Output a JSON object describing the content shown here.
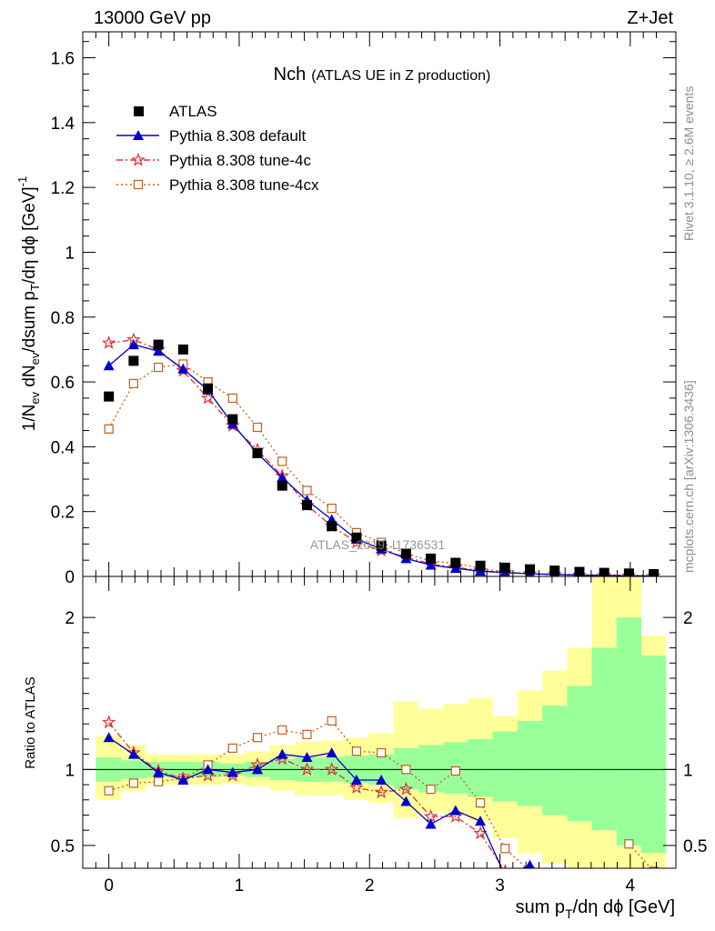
{
  "header": {
    "left": "13000 GeV pp",
    "right": "Z+Jet"
  },
  "side_labels": {
    "rivet": "Rivet 3.1.10, ≥ 2.6M events",
    "mcplots": "mcplots.cern.ch [arXiv:1306.3436]"
  },
  "watermark": "ATLAS_2019_I1736531",
  "chart_data": [
    {
      "panel": "main",
      "type": "line",
      "title_main": "Nch",
      "title_sub": "(ATLAS UE in Z production)",
      "xlabel": "sum p_T/dη dϕ [GeV]",
      "ylabel": "1/N_ev dN_ev/dsum p_T/dη dϕ [GeV]^-1",
      "xlim": [
        -0.2,
        4.35
      ],
      "ylim": [
        0,
        1.68
      ],
      "y_ticks": [
        "0",
        "0.2",
        "0.4",
        "0.6",
        "0.8",
        "1",
        "1.2",
        "1.4",
        "1.6"
      ],
      "legend_position": "top-left",
      "x": [
        0.0,
        0.19,
        0.38,
        0.57,
        0.76,
        0.95,
        1.14,
        1.33,
        1.52,
        1.71,
        1.9,
        2.09,
        2.28,
        2.47,
        2.66,
        2.85,
        3.04,
        3.23,
        3.42,
        3.61,
        3.8,
        3.99,
        4.18
      ],
      "series": [
        {
          "name": "ATLAS",
          "style": "data",
          "color": "#000000",
          "values": [
            0.555,
            0.665,
            0.715,
            0.7,
            0.58,
            0.485,
            0.38,
            0.28,
            0.22,
            0.155,
            0.12,
            0.095,
            0.07,
            0.055,
            0.042,
            0.033,
            0.027,
            0.022,
            0.018,
            0.014,
            0.011,
            0.009,
            0.007
          ]
        },
        {
          "name": "Pythia 8.308 default",
          "style": "solid-triangle",
          "color": "#0000cc",
          "values": [
            0.65,
            0.715,
            0.695,
            0.64,
            0.575,
            0.47,
            0.38,
            0.305,
            0.235,
            0.175,
            0.115,
            0.085,
            0.055,
            0.035,
            0.025,
            0.016,
            0.012,
            0.008,
            0.006,
            0.004,
            0.003,
            0.002,
            0.001
          ]
        },
        {
          "name": "Pythia 8.308 tune-4c",
          "style": "dashdot-star",
          "color": "#dd3333",
          "values": [
            0.72,
            0.73,
            0.7,
            0.635,
            0.55,
            0.465,
            0.39,
            0.31,
            0.22,
            0.155,
            0.105,
            0.08,
            0.06,
            0.038,
            0.028,
            0.018,
            0.012,
            0.008,
            0.006,
            0.004,
            0.003,
            0.002,
            0.001
          ]
        },
        {
          "name": "Pythia 8.308 tune-4cx",
          "style": "dotted-square",
          "color": "#c06020",
          "values": [
            0.455,
            0.595,
            0.645,
            0.655,
            0.6,
            0.55,
            0.46,
            0.355,
            0.265,
            0.21,
            0.135,
            0.105,
            0.07,
            0.048,
            0.04,
            0.025,
            0.013,
            0.009,
            0.007,
            0.006,
            0.005,
            0.004,
            0.003
          ]
        }
      ]
    },
    {
      "panel": "ratio",
      "type": "line",
      "ylabel": "Ratio to ATLAS",
      "xlabel": "sum p_T/dη dϕ [GeV]",
      "xlim": [
        -0.2,
        4.35
      ],
      "ylim": [
        0.35,
        2.27
      ],
      "y_ticks": [
        "0.5",
        "1",
        "2"
      ],
      "x_ticks": [
        "0",
        "1",
        "2",
        "3",
        "4"
      ],
      "reference_line": 1,
      "band_edges": [
        -0.1,
        0.095,
        0.285,
        0.475,
        0.665,
        0.855,
        1.045,
        1.235,
        1.425,
        1.615,
        1.805,
        1.995,
        2.185,
        2.375,
        2.565,
        2.755,
        2.945,
        3.135,
        3.325,
        3.515,
        3.705,
        3.895,
        4.085,
        4.275
      ],
      "band_inner": {
        "color": "#99ff99",
        "low": [
          0.92,
          0.94,
          0.95,
          0.95,
          0.95,
          0.96,
          0.95,
          0.93,
          0.92,
          0.92,
          0.91,
          0.9,
          0.87,
          0.85,
          0.84,
          0.82,
          0.79,
          0.76,
          0.7,
          0.66,
          0.6,
          0.5,
          0.45
        ],
        "high": [
          1.08,
          1.06,
          1.05,
          1.05,
          1.05,
          1.04,
          1.05,
          1.07,
          1.08,
          1.08,
          1.09,
          1.1,
          1.14,
          1.16,
          1.18,
          1.2,
          1.25,
          1.32,
          1.42,
          1.55,
          1.8,
          2.0,
          1.75
        ]
      },
      "band_outer": {
        "color": "#ffff99",
        "low": [
          0.8,
          0.86,
          0.9,
          0.9,
          0.9,
          0.91,
          0.89,
          0.86,
          0.83,
          0.83,
          0.8,
          0.78,
          0.68,
          0.72,
          0.7,
          0.66,
          0.55,
          0.45,
          0.38,
          0.35,
          0.35,
          0.35,
          0.35
        ],
        "high": [
          1.22,
          1.16,
          1.1,
          1.1,
          1.1,
          1.1,
          1.12,
          1.16,
          1.18,
          1.19,
          1.21,
          1.24,
          1.45,
          1.4,
          1.43,
          1.47,
          1.35,
          1.52,
          1.65,
          1.8,
          2.27,
          2.27,
          1.88
        ]
      },
      "series": [
        {
          "name": "Pythia 8.308 default",
          "color": "#0000cc",
          "values": [
            1.21,
            1.1,
            0.98,
            0.93,
            1.0,
            0.98,
            1.0,
            1.1,
            1.08,
            1.11,
            0.93,
            0.93,
            0.79,
            0.64,
            0.73,
            0.66,
            0.3,
            0.37,
            null,
            null,
            null,
            null,
            null
          ]
        },
        {
          "name": "Pythia 8.308 tune-4c",
          "color": "#dd3333",
          "values": [
            1.31,
            1.11,
            0.99,
            0.94,
            0.96,
            0.96,
            1.03,
            1.07,
            1.0,
            1.0,
            0.88,
            0.85,
            0.87,
            0.69,
            0.69,
            0.58,
            0.33,
            null,
            null,
            null,
            null,
            null,
            null
          ]
        },
        {
          "name": "Pythia 8.308 tune-4cx",
          "color": "#c06020",
          "values": [
            0.86,
            0.91,
            0.92,
            0.94,
            1.03,
            1.14,
            1.21,
            1.26,
            1.23,
            1.32,
            1.12,
            1.11,
            1.0,
            0.87,
            0.99,
            0.78,
            0.48,
            0.33,
            null,
            null,
            null,
            0.51,
            0.33
          ]
        }
      ]
    }
  ]
}
